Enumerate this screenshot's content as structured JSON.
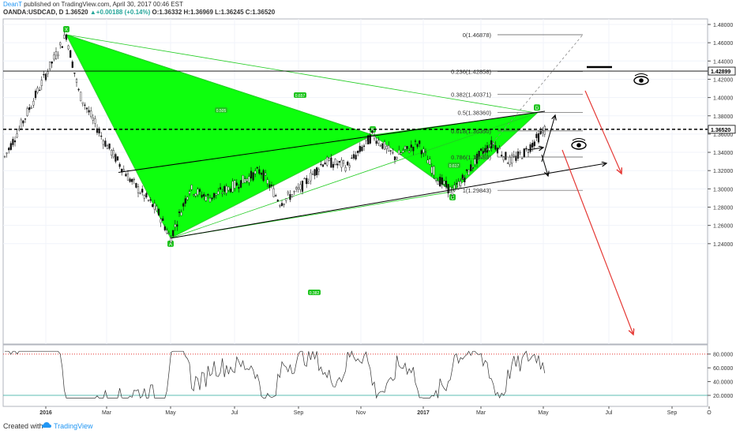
{
  "header": {
    "author": "DeanT",
    "published": " published on TradingView.com, April 30, 2017 00:46 EST",
    "symbol": "OANDA:USDCAD, D",
    "price": "1.36520",
    "change": "+0.00188 (+0.14%)",
    "ohlc": "O:1.36332 H:1.36969 L:1.36245 C:1.36520"
  },
  "footer": {
    "created": "Created with",
    "brand": "TradingView"
  },
  "colors": {
    "pattern": "#00ff00",
    "arrow": "#e53935",
    "line": "#000000",
    "rsi_level": "#e53935",
    "rsi_level_low": "#26a69a"
  },
  "chart_data": {
    "type": "candlestick",
    "symbol": "OANDA:USDCAD",
    "timeframe": "D",
    "x_tick_labels": [
      "2016",
      "Mar",
      "May",
      "Jul",
      "Sep",
      "Nov",
      "2017",
      "Mar",
      "May",
      "Jul",
      "Sep",
      "O"
    ],
    "y_tick_labels": [
      "1.48000",
      "1.46000",
      "1.44000",
      "1.42000",
      "1.40000",
      "1.38000",
      "1.36000",
      "1.34000",
      "1.32000",
      "1.30000",
      "1.28000",
      "1.26000",
      "1.24000"
    ],
    "ylim": [
      1.23,
      1.49
    ],
    "price_markers": [
      {
        "label": "1.42899",
        "value": 1.42899,
        "style": "solid"
      },
      {
        "label": "1.36520",
        "value": 1.3652,
        "style": "dashed"
      }
    ],
    "fibonacci_levels": [
      {
        "label": "0(1.46878)",
        "value": 1.46878
      },
      {
        "label": "0.236(1.42858)",
        "value": 1.42858
      },
      {
        "label": "0.382(1.40371)",
        "value": 1.40371
      },
      {
        "label": "0.5(1.38360)",
        "value": 1.3836
      },
      {
        "label": "0.618(1.36350)",
        "value": 1.3635
      },
      {
        "label": "0.786(1.33488)",
        "value": 1.33488
      },
      {
        "label": "1(1.29843)",
        "value": 1.29843
      }
    ],
    "pattern_points": [
      {
        "label": "X",
        "value": 1.4688
      },
      {
        "label": "A",
        "value": 1.246
      },
      {
        "label": "B",
        "value": 1.359
      },
      {
        "label": "C",
        "value": 1.297
      },
      {
        "label": "D",
        "value": 1.383
      }
    ],
    "pattern_ratios": [
      "0.505",
      "0.657",
      "0.382",
      "0.617"
    ],
    "rsi": {
      "y_tick_labels": [
        "80.0000",
        "60.0000",
        "40.0000",
        "20.0000"
      ],
      "levels": [
        80,
        20
      ]
    }
  }
}
